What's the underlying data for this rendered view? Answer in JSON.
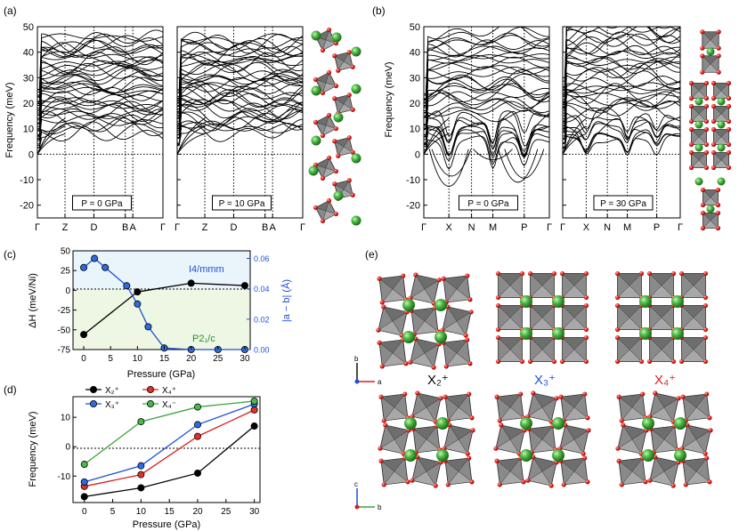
{
  "panel_labels": {
    "a": "(a)",
    "b": "(b)",
    "c": "(c)",
    "d": "(d)",
    "e": "(e)"
  },
  "colors": {
    "blue": "#1f4fd8",
    "red": "#d81f1f",
    "green": "#3ca63c",
    "black": "#000000",
    "octa": "#8c8c8c",
    "oxygen": "#e0201b",
    "cation": "#49b449",
    "bg_blue": "#eaf4fb",
    "bg_green": "#eef7e4"
  },
  "panel_a": {
    "ylabel": "Frequency (meV)",
    "yticks": [
      "50",
      "40",
      "30",
      "20",
      "10",
      "0",
      "-10",
      "-20"
    ],
    "ylim": [
      -25,
      50
    ],
    "plots": [
      {
        "pressure": "P = 0 GPa",
        "xticks": [
          "Γ",
          "Z",
          "D",
          "B",
          "A",
          "Γ"
        ]
      },
      {
        "pressure": "P = 10 GPa",
        "xticks": [
          "Γ",
          "Z",
          "D",
          "B",
          "A",
          "Γ"
        ]
      }
    ]
  },
  "panel_b": {
    "ylabel": "Frequency (meV)",
    "yticks": [
      "50",
      "40",
      "30",
      "20",
      "10",
      "0",
      "-10",
      "-20"
    ],
    "ylim": [
      -25,
      50
    ],
    "plots": [
      {
        "pressure": "P = 0 GPa",
        "xticks": [
          "Γ",
          "X",
          "N",
          "M",
          "P",
          "Γ"
        ]
      },
      {
        "pressure": "P = 30 GPa",
        "xticks": [
          "Γ",
          "X",
          "N",
          "M",
          "P",
          "Γ"
        ]
      }
    ]
  },
  "panel_e": {
    "modes": [
      "X₂⁺",
      "X₃⁺",
      "X₄⁺"
    ],
    "axes_top": {
      "up": "b",
      "right": "a"
    },
    "axes_bottom": {
      "up": "c",
      "right": "b"
    }
  },
  "chart_data": [
    {
      "type": "line",
      "panel": "(c)",
      "xlabel": "Pressure (GPa)",
      "ylabel": "ΔH (meV/Ni)",
      "y2label": "|a − b| (Å)",
      "xlim": [
        -2,
        31
      ],
      "ylim": [
        -75,
        50
      ],
      "y2lim": [
        0,
        0.065
      ],
      "xticks": [
        "0",
        "5",
        "10",
        "15",
        "20",
        "25",
        "30"
      ],
      "yticks": [
        "50",
        "25",
        "0",
        "-25",
        "-50",
        "-75"
      ],
      "y2ticks": [
        "0.06",
        "0.04",
        "0.02",
        "0.00"
      ],
      "region_labels": [
        "I4/mmm",
        "P2₁/c"
      ],
      "series": [
        {
          "axis": "left",
          "color": "#000000",
          "x": [
            0,
            10,
            20,
            30
          ],
          "y": [
            -56,
            -2,
            9,
            6
          ]
        },
        {
          "axis": "right",
          "color": "#1f4fd8",
          "x": [
            0,
            2,
            4,
            8,
            10,
            12,
            15,
            20,
            25,
            30
          ],
          "y": [
            0.054,
            0.06,
            0.054,
            0.042,
            0.03,
            0.015,
            0.001,
            0.0,
            0.0,
            0.0
          ]
        }
      ]
    },
    {
      "type": "line",
      "panel": "(d)",
      "xlabel": "Pressure (GPa)",
      "ylabel": "Frequency (meV)",
      "xlim": [
        -2,
        31
      ],
      "ylim": [
        -19,
        17
      ],
      "xticks": [
        "0",
        "5",
        "10",
        "15",
        "20",
        "25",
        "30"
      ],
      "yticks": [
        "10",
        "0",
        "-10"
      ],
      "legend_position": "top-left",
      "series": [
        {
          "name": "X₂⁺",
          "color": "#000000",
          "x": [
            0,
            10,
            20,
            30
          ],
          "y": [
            -17,
            -14,
            -9,
            7
          ]
        },
        {
          "name": "X₄⁺",
          "color": "#d81f1f",
          "x": [
            0,
            10,
            20,
            30
          ],
          "y": [
            -13.5,
            -9.5,
            3.5,
            12.5
          ]
        },
        {
          "name": "X₃⁺",
          "color": "#1f4fd8",
          "x": [
            0,
            10,
            20,
            30
          ],
          "y": [
            -12,
            -6.5,
            7.5,
            14.5
          ]
        },
        {
          "name": "X₄⁻",
          "color": "#3ca63c",
          "x": [
            0,
            10,
            20,
            30
          ],
          "y": [
            -6,
            8.5,
            13.5,
            15.5
          ]
        }
      ]
    }
  ]
}
